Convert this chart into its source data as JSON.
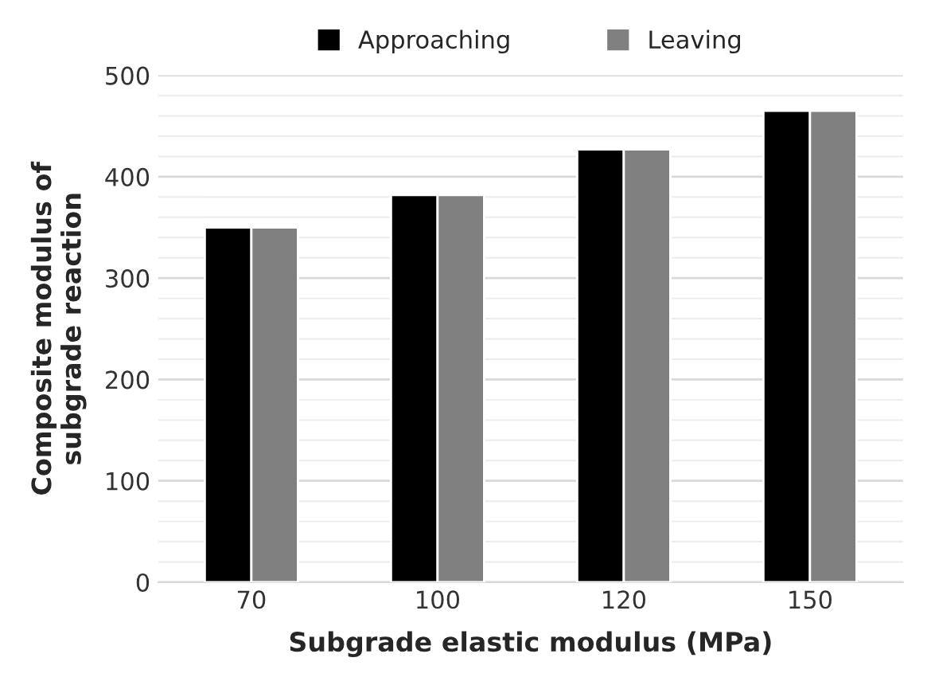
{
  "chart_data": {
    "type": "bar",
    "xlabel": "Subgrade elastic modulus (MPa)",
    "ylabel": "Composite modulus of\nsubgrade reaction",
    "categories": [
      "70",
      "100",
      "120",
      "150"
    ],
    "series": [
      {
        "name": "Approaching",
        "color": "#000000",
        "values": [
          350,
          382,
          427,
          465
        ]
      },
      {
        "name": "Leaving",
        "color": "#808080",
        "values": [
          350,
          382,
          427,
          465
        ]
      }
    ],
    "ylim": [
      0,
      500
    ],
    "yticks": [
      0,
      {
        "value": 20,
        "label": null
      },
      {
        "value": 40,
        "label": null
      },
      {
        "value": 60,
        "label": null
      },
      {
        "value": 80,
        "label": null
      },
      100,
      {
        "value": 120,
        "label": null
      },
      {
        "value": 140,
        "label": null
      },
      {
        "value": 160,
        "label": null
      },
      {
        "value": 180,
        "label": null
      },
      200,
      {
        "value": 220,
        "label": null
      },
      {
        "value": 240,
        "label": null
      },
      {
        "value": 260,
        "label": null
      },
      {
        "value": 280,
        "label": null
      },
      300,
      {
        "value": 320,
        "label": null
      },
      {
        "value": 340,
        "label": null
      },
      {
        "value": 360,
        "label": null
      },
      {
        "value": 380,
        "label": null
      },
      400,
      {
        "value": 420,
        "label": null
      },
      {
        "value": 440,
        "label": null
      },
      {
        "value": 460,
        "label": null
      },
      {
        "value": 480,
        "label": null
      },
      500
    ],
    "grid": "y",
    "legend": "top"
  }
}
